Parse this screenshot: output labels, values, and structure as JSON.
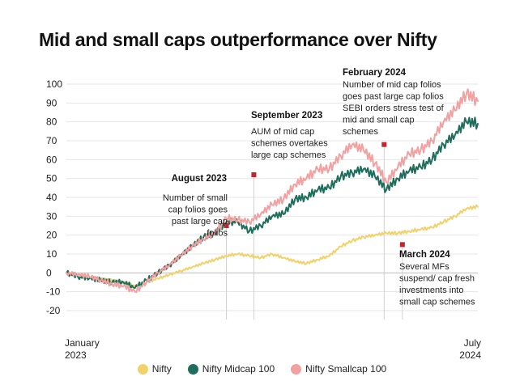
{
  "title": "Mid and small caps outperformance over Nifty",
  "chart_data": {
    "type": "line",
    "title": "Mid and small caps outperformance over Nifty",
    "ylim": [
      -20,
      100
    ],
    "yticks": [
      "100",
      "90",
      "80",
      "70",
      "60",
      "50",
      "40",
      "30",
      "20",
      "10",
      "0",
      "-10",
      "-20"
    ],
    "x_start_label": [
      "January",
      "2023"
    ],
    "x_end_label": [
      "July",
      "2024"
    ],
    "x_range": [
      0,
      18
    ],
    "colors": {
      "nifty": "#f2d16b",
      "midcap": "#1f6e5c",
      "smallcap": "#f2a0a0",
      "marker": "#c0272d"
    },
    "series": [
      {
        "key": "nifty",
        "name": "Nifty",
        "x": [
          0,
          0.5,
          1,
          1.5,
          2,
          2.5,
          3,
          3.5,
          4,
          4.5,
          5,
          5.5,
          6,
          6.5,
          7,
          7.5,
          8,
          8.5,
          9,
          9.5,
          10,
          10.5,
          11,
          11.5,
          12,
          12.5,
          13,
          13.5,
          14,
          14.5,
          15,
          15.5,
          16,
          16.5,
          17,
          17.5,
          18
        ],
        "values": [
          0,
          -1,
          -2,
          -3,
          -4,
          -5,
          -7,
          -5,
          -3,
          -1,
          1,
          3,
          5,
          7,
          9,
          10,
          9,
          8,
          10,
          8,
          6,
          5,
          7,
          9,
          14,
          17,
          19,
          20,
          21,
          21,
          22,
          23,
          24,
          27,
          30,
          34,
          35
        ]
      },
      {
        "key": "midcap",
        "name": "Nifty Midcap 100",
        "x": [
          0,
          0.5,
          1,
          1.5,
          2,
          2.5,
          3,
          3.5,
          4,
          4.5,
          5,
          5.5,
          6,
          6.5,
          7,
          7.5,
          8,
          8.5,
          9,
          9.5,
          10,
          10.5,
          11,
          11.5,
          12,
          12.5,
          13,
          13.5,
          14,
          14.5,
          15,
          15.5,
          16,
          16.5,
          17,
          17.5,
          18
        ],
        "values": [
          0,
          -2,
          -3,
          -4,
          -5,
          -5,
          -8,
          -4,
          0,
          4,
          9,
          14,
          19,
          21,
          27,
          27,
          22,
          25,
          30,
          31,
          39,
          40,
          44,
          45,
          51,
          53,
          55,
          51,
          44,
          50,
          54,
          56,
          60,
          68,
          73,
          80,
          79
        ]
      },
      {
        "key": "smallcap",
        "name": "Nifty Smallcap 100",
        "x": [
          0,
          0.5,
          1,
          1.5,
          2,
          2.5,
          3,
          3.5,
          4,
          4.5,
          5,
          5.5,
          6,
          6.5,
          7,
          7.5,
          8,
          8.5,
          9,
          9.5,
          10,
          10.5,
          11,
          11.5,
          12,
          12.5,
          13,
          13.5,
          14,
          14.5,
          15,
          15.5,
          16,
          16.5,
          17,
          17.5,
          18
        ],
        "values": [
          0,
          -1,
          -2,
          -4,
          -6,
          -7,
          -10,
          -5,
          0,
          4,
          9,
          14,
          18,
          21,
          29,
          28,
          27,
          31,
          36,
          39,
          47,
          50,
          55,
          55,
          62,
          68,
          65,
          58,
          48,
          56,
          63,
          65,
          70,
          80,
          86,
          95,
          91
        ]
      }
    ],
    "annotations": [
      {
        "title": "August 2023",
        "lines": [
          "Number of small",
          "cap folios goes",
          "past large cap",
          "folios"
        ],
        "marker": {
          "x": 7,
          "y": 25
        }
      },
      {
        "title": "September 2023",
        "lines": [
          "AUM of mid cap",
          "schemes overtakes",
          "large cap schemes"
        ],
        "marker": {
          "x": 8.2,
          "y": 52
        }
      },
      {
        "title": "February 2024",
        "lines": [
          "Number of mid cap folios",
          "goes past large cap folios",
          "SEBI orders stress test of",
          "mid and small cap",
          "schemes"
        ],
        "marker": {
          "x": 13.9,
          "y": 68
        }
      },
      {
        "title": "March 2024",
        "lines": [
          "Several MFs",
          "suspend/ cap fresh",
          "investments into",
          "small cap schemes"
        ],
        "marker": {
          "x": 14.7,
          "y": 15
        }
      }
    ]
  }
}
